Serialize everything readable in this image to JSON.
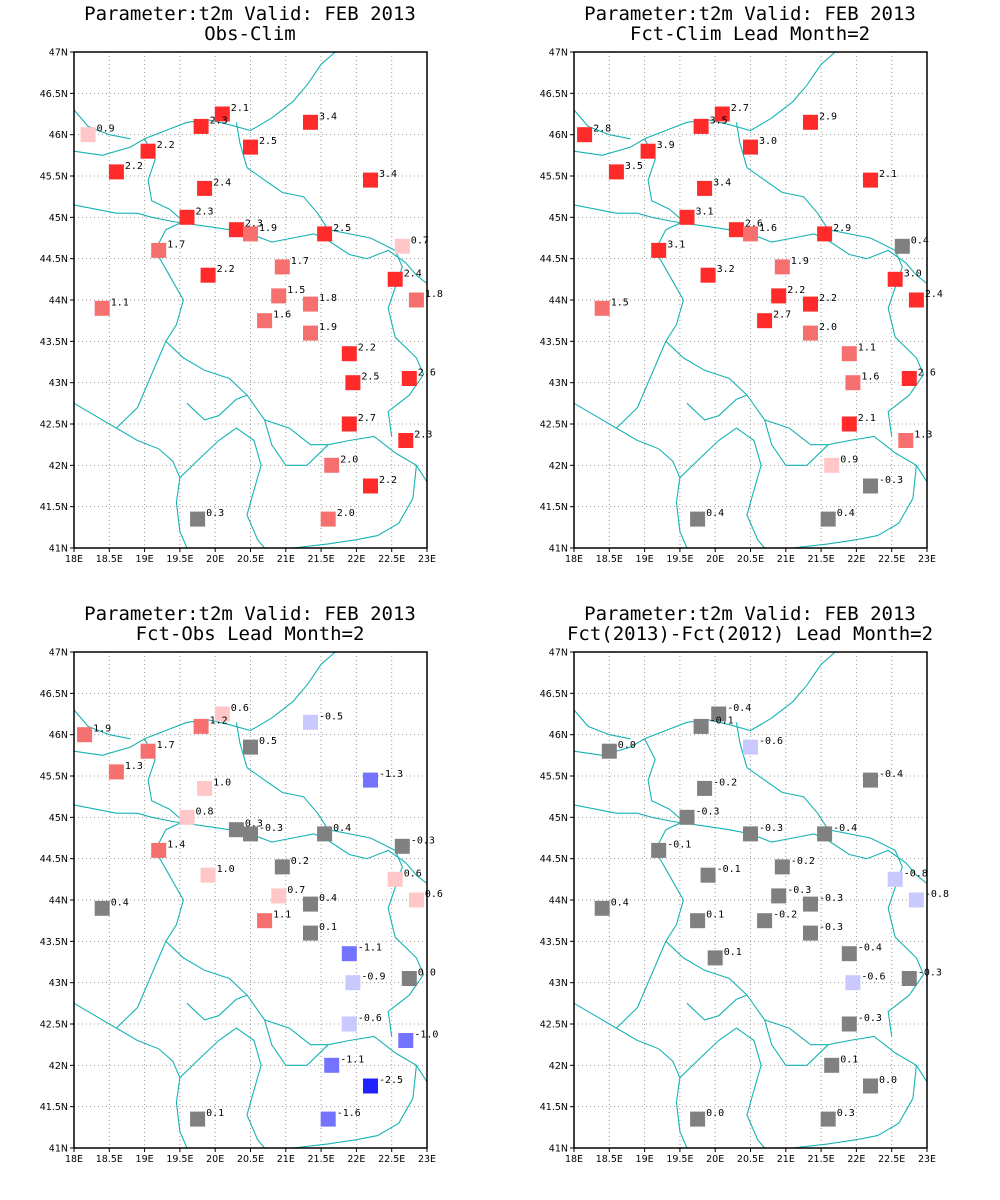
{
  "page": {
    "background": "#ffffff"
  },
  "axes": {
    "lon_range": [
      18,
      23
    ],
    "lat_range": [
      41,
      47
    ],
    "x_tick_labels": [
      "18E",
      "18.5E",
      "19E",
      "19.5E",
      "20E",
      "20.5E",
      "21E",
      "21.5E",
      "22E",
      "22.5E",
      "23E"
    ],
    "y_tick_labels": [
      "41N",
      "41.5N",
      "42N",
      "42.5N",
      "43N",
      "43.5N",
      "44N",
      "44.5N",
      "45N",
      "45.5N",
      "46N",
      "46.5N",
      "47N"
    ],
    "grid": "dotted",
    "coastline_color": "#17b3b3"
  },
  "colors": {
    "strong_warm": "#ff2a2a",
    "medium_warm": "#f77070",
    "light_warm": "#ffc7c7",
    "neutral": "#808080",
    "light_cool": "#c9c9ff",
    "medium_cool": "#7373ff",
    "strong_cool": "#2222ff"
  },
  "panels": [
    {
      "title_line1": "Parameter:t2m Valid: FEB 2013",
      "title_line2": "Obs-Clim",
      "chart_data": {
        "type": "scatter",
        "points": [
          {
            "lon": 18.2,
            "lat": 46.0,
            "label": "0.9",
            "color": "light_warm"
          },
          {
            "lon": 20.1,
            "lat": 46.25,
            "label": "2.1",
            "color": "strong_warm"
          },
          {
            "lon": 19.8,
            "lat": 46.1,
            "label": "2.3",
            "color": "strong_warm"
          },
          {
            "lon": 21.35,
            "lat": 46.15,
            "label": "3.4",
            "color": "strong_warm"
          },
          {
            "lon": 19.05,
            "lat": 45.8,
            "label": "2.2",
            "color": "strong_warm"
          },
          {
            "lon": 20.5,
            "lat": 45.85,
            "label": "2.5",
            "color": "strong_warm"
          },
          {
            "lon": 18.6,
            "lat": 45.55,
            "label": "2.2",
            "color": "strong_warm"
          },
          {
            "lon": 19.85,
            "lat": 45.35,
            "label": "2.4",
            "color": "strong_warm"
          },
          {
            "lon": 22.2,
            "lat": 45.45,
            "label": "3.4",
            "color": "strong_warm"
          },
          {
            "lon": 19.6,
            "lat": 45.0,
            "label": "2.3",
            "color": "strong_warm"
          },
          {
            "lon": 20.3,
            "lat": 44.85,
            "label": "2.3",
            "color": "strong_warm"
          },
          {
            "lon": 20.5,
            "lat": 44.8,
            "label": "1.9",
            "color": "medium_warm"
          },
          {
            "lon": 21.55,
            "lat": 44.8,
            "label": "2.5",
            "color": "strong_warm"
          },
          {
            "lon": 22.65,
            "lat": 44.65,
            "label": "0.7",
            "color": "light_warm"
          },
          {
            "lon": 19.2,
            "lat": 44.6,
            "label": "1.7",
            "color": "medium_warm"
          },
          {
            "lon": 20.95,
            "lat": 44.4,
            "label": "1.7",
            "color": "medium_warm"
          },
          {
            "lon": 19.9,
            "lat": 44.3,
            "label": "2.2",
            "color": "strong_warm"
          },
          {
            "lon": 22.55,
            "lat": 44.25,
            "label": "2.4",
            "color": "strong_warm"
          },
          {
            "lon": 20.9,
            "lat": 44.05,
            "label": "1.5",
            "color": "medium_warm"
          },
          {
            "lon": 21.35,
            "lat": 43.95,
            "label": "1.8",
            "color": "medium_warm"
          },
          {
            "lon": 22.85,
            "lat": 44.0,
            "label": "1.8",
            "color": "medium_warm"
          },
          {
            "lon": 18.4,
            "lat": 43.9,
            "label": "1.1",
            "color": "medium_warm"
          },
          {
            "lon": 20.7,
            "lat": 43.75,
            "label": "1.6",
            "color": "medium_warm"
          },
          {
            "lon": 21.35,
            "lat": 43.6,
            "label": "1.9",
            "color": "medium_warm"
          },
          {
            "lon": 21.9,
            "lat": 43.35,
            "label": "2.2",
            "color": "strong_warm"
          },
          {
            "lon": 21.95,
            "lat": 43.0,
            "label": "2.5",
            "color": "strong_warm"
          },
          {
            "lon": 22.75,
            "lat": 43.05,
            "label": "2.6",
            "color": "strong_warm"
          },
          {
            "lon": 21.9,
            "lat": 42.5,
            "label": "2.7",
            "color": "strong_warm"
          },
          {
            "lon": 22.7,
            "lat": 42.3,
            "label": "2.3",
            "color": "strong_warm"
          },
          {
            "lon": 21.65,
            "lat": 42.0,
            "label": "2.0",
            "color": "medium_warm"
          },
          {
            "lon": 22.2,
            "lat": 41.75,
            "label": "2.2",
            "color": "strong_warm"
          },
          {
            "lon": 19.75,
            "lat": 41.35,
            "label": "0.3",
            "color": "neutral"
          },
          {
            "lon": 21.6,
            "lat": 41.35,
            "label": "2.0",
            "color": "medium_warm"
          }
        ]
      }
    },
    {
      "title_line1": "Parameter:t2m Valid: FEB 2013",
      "title_line2": "Fct-Clim Lead Month=2",
      "chart_data": {
        "type": "scatter",
        "points": [
          {
            "lon": 18.15,
            "lat": 46.0,
            "label": "2.8",
            "color": "strong_warm"
          },
          {
            "lon": 20.1,
            "lat": 46.25,
            "label": "2.7",
            "color": "strong_warm"
          },
          {
            "lon": 19.8,
            "lat": 46.1,
            "label": "3.5",
            "color": "strong_warm"
          },
          {
            "lon": 21.35,
            "lat": 46.15,
            "label": "2.9",
            "color": "strong_warm"
          },
          {
            "lon": 19.05,
            "lat": 45.8,
            "label": "3.9",
            "color": "strong_warm"
          },
          {
            "lon": 20.5,
            "lat": 45.85,
            "label": "3.0",
            "color": "strong_warm"
          },
          {
            "lon": 18.6,
            "lat": 45.55,
            "label": "3.5",
            "color": "strong_warm"
          },
          {
            "lon": 19.85,
            "lat": 45.35,
            "label": "3.4",
            "color": "strong_warm"
          },
          {
            "lon": 22.2,
            "lat": 45.45,
            "label": "2.1",
            "color": "strong_warm"
          },
          {
            "lon": 19.6,
            "lat": 45.0,
            "label": "3.1",
            "color": "strong_warm"
          },
          {
            "lon": 20.3,
            "lat": 44.85,
            "label": "2.6",
            "color": "strong_warm"
          },
          {
            "lon": 20.5,
            "lat": 44.8,
            "label": "1.6",
            "color": "medium_warm"
          },
          {
            "lon": 21.55,
            "lat": 44.8,
            "label": "2.9",
            "color": "strong_warm"
          },
          {
            "lon": 22.65,
            "lat": 44.65,
            "label": "0.4",
            "color": "neutral"
          },
          {
            "lon": 19.2,
            "lat": 44.6,
            "label": "3.1",
            "color": "strong_warm"
          },
          {
            "lon": 20.95,
            "lat": 44.4,
            "label": "1.9",
            "color": "medium_warm"
          },
          {
            "lon": 19.9,
            "lat": 44.3,
            "label": "3.2",
            "color": "strong_warm"
          },
          {
            "lon": 22.55,
            "lat": 44.25,
            "label": "3.0",
            "color": "strong_warm"
          },
          {
            "lon": 20.9,
            "lat": 44.05,
            "label": "2.2",
            "color": "strong_warm"
          },
          {
            "lon": 21.35,
            "lat": 43.95,
            "label": "2.2",
            "color": "strong_warm"
          },
          {
            "lon": 22.85,
            "lat": 44.0,
            "label": "2.4",
            "color": "strong_warm"
          },
          {
            "lon": 18.4,
            "lat": 43.9,
            "label": "1.5",
            "color": "medium_warm"
          },
          {
            "lon": 20.7,
            "lat": 43.75,
            "label": "2.7",
            "color": "strong_warm"
          },
          {
            "lon": 21.35,
            "lat": 43.6,
            "label": "2.0",
            "color": "medium_warm"
          },
          {
            "lon": 21.9,
            "lat": 43.35,
            "label": "1.1",
            "color": "medium_warm"
          },
          {
            "lon": 21.95,
            "lat": 43.0,
            "label": "1.6",
            "color": "medium_warm"
          },
          {
            "lon": 22.75,
            "lat": 43.05,
            "label": "2.6",
            "color": "strong_warm"
          },
          {
            "lon": 21.9,
            "lat": 42.5,
            "label": "2.1",
            "color": "strong_warm"
          },
          {
            "lon": 22.7,
            "lat": 42.3,
            "label": "1.3",
            "color": "medium_warm"
          },
          {
            "lon": 21.65,
            "lat": 42.0,
            "label": "0.9",
            "color": "light_warm"
          },
          {
            "lon": 22.2,
            "lat": 41.75,
            "label": "-0.3",
            "color": "neutral"
          },
          {
            "lon": 19.75,
            "lat": 41.35,
            "label": "0.4",
            "color": "neutral"
          },
          {
            "lon": 21.6,
            "lat": 41.35,
            "label": "0.4",
            "color": "neutral"
          }
        ]
      }
    },
    {
      "title_line1": "Parameter:t2m Valid: FEB 2013",
      "title_line2": "Fct-Obs Lead Month=2",
      "chart_data": {
        "type": "scatter",
        "points": [
          {
            "lon": 18.15,
            "lat": 46.0,
            "label": "1.9",
            "color": "medium_warm"
          },
          {
            "lon": 20.1,
            "lat": 46.25,
            "label": "0.6",
            "color": "light_warm"
          },
          {
            "lon": 19.8,
            "lat": 46.1,
            "label": "1.2",
            "color": "medium_warm"
          },
          {
            "lon": 21.35,
            "lat": 46.15,
            "label": "-0.5",
            "color": "light_cool"
          },
          {
            "lon": 19.05,
            "lat": 45.8,
            "label": "1.7",
            "color": "medium_warm"
          },
          {
            "lon": 20.5,
            "lat": 45.85,
            "label": "0.5",
            "color": "neutral"
          },
          {
            "lon": 18.6,
            "lat": 45.55,
            "label": "1.3",
            "color": "medium_warm"
          },
          {
            "lon": 19.85,
            "lat": 45.35,
            "label": "1.0",
            "color": "light_warm"
          },
          {
            "lon": 22.2,
            "lat": 45.45,
            "label": "-1.3",
            "color": "medium_cool"
          },
          {
            "lon": 19.6,
            "lat": 45.0,
            "label": "0.8",
            "color": "light_warm"
          },
          {
            "lon": 20.3,
            "lat": 44.85,
            "label": "0.3",
            "color": "neutral"
          },
          {
            "lon": 20.5,
            "lat": 44.8,
            "label": "-0.3",
            "color": "neutral"
          },
          {
            "lon": 21.55,
            "lat": 44.8,
            "label": "0.4",
            "color": "neutral"
          },
          {
            "lon": 22.65,
            "lat": 44.65,
            "label": "-0.3",
            "color": "neutral"
          },
          {
            "lon": 19.2,
            "lat": 44.6,
            "label": "1.4",
            "color": "medium_warm"
          },
          {
            "lon": 20.95,
            "lat": 44.4,
            "label": "0.2",
            "color": "neutral"
          },
          {
            "lon": 19.9,
            "lat": 44.3,
            "label": "1.0",
            "color": "light_warm"
          },
          {
            "lon": 22.55,
            "lat": 44.25,
            "label": "0.6",
            "color": "light_warm"
          },
          {
            "lon": 20.9,
            "lat": 44.05,
            "label": "0.7",
            "color": "light_warm"
          },
          {
            "lon": 21.35,
            "lat": 43.95,
            "label": "0.4",
            "color": "neutral"
          },
          {
            "lon": 22.85,
            "lat": 44.0,
            "label": "0.6",
            "color": "light_warm"
          },
          {
            "lon": 18.4,
            "lat": 43.9,
            "label": "0.4",
            "color": "neutral"
          },
          {
            "lon": 20.7,
            "lat": 43.75,
            "label": "1.1",
            "color": "medium_warm"
          },
          {
            "lon": 21.35,
            "lat": 43.6,
            "label": "0.1",
            "color": "neutral"
          },
          {
            "lon": 21.9,
            "lat": 43.35,
            "label": "-1.1",
            "color": "medium_cool"
          },
          {
            "lon": 21.95,
            "lat": 43.0,
            "label": "-0.9",
            "color": "light_cool"
          },
          {
            "lon": 22.75,
            "lat": 43.05,
            "label": "0.0",
            "color": "neutral"
          },
          {
            "lon": 21.9,
            "lat": 42.5,
            "label": "-0.6",
            "color": "light_cool"
          },
          {
            "lon": 22.7,
            "lat": 42.3,
            "label": "-1.0",
            "color": "medium_cool"
          },
          {
            "lon": 21.65,
            "lat": 42.0,
            "label": "-1.1",
            "color": "medium_cool"
          },
          {
            "lon": 22.2,
            "lat": 41.75,
            "label": "-2.5",
            "color": "strong_cool"
          },
          {
            "lon": 19.75,
            "lat": 41.35,
            "label": "0.1",
            "color": "neutral"
          },
          {
            "lon": 21.6,
            "lat": 41.35,
            "label": "-1.6",
            "color": "medium_cool"
          }
        ]
      }
    },
    {
      "title_line1": "Parameter:t2m Valid: FEB 2013",
      "title_line2": "Fct(2013)-Fct(2012) Lead Month=2",
      "chart_data": {
        "type": "scatter",
        "points": [
          {
            "lon": 18.5,
            "lat": 45.8,
            "label": "0.0",
            "color": "neutral"
          },
          {
            "lon": 20.05,
            "lat": 46.25,
            "label": "-0.4",
            "color": "neutral"
          },
          {
            "lon": 19.8,
            "lat": 46.1,
            "label": "-0.1",
            "color": "neutral"
          },
          {
            "lon": 20.5,
            "lat": 45.85,
            "label": "-0.6",
            "color": "light_cool"
          },
          {
            "lon": 19.85,
            "lat": 45.35,
            "label": "-0.2",
            "color": "neutral"
          },
          {
            "lon": 22.2,
            "lat": 45.45,
            "label": "-0.4",
            "color": "neutral"
          },
          {
            "lon": 19.6,
            "lat": 45.0,
            "label": "-0.3",
            "color": "neutral"
          },
          {
            "lon": 20.5,
            "lat": 44.8,
            "label": "-0.3",
            "color": "neutral"
          },
          {
            "lon": 21.55,
            "lat": 44.8,
            "label": "-0.4",
            "color": "neutral"
          },
          {
            "lon": 19.2,
            "lat": 44.6,
            "label": "-0.1",
            "color": "neutral"
          },
          {
            "lon": 20.95,
            "lat": 44.4,
            "label": "-0.2",
            "color": "neutral"
          },
          {
            "lon": 19.9,
            "lat": 44.3,
            "label": "-0.1",
            "color": "neutral"
          },
          {
            "lon": 22.55,
            "lat": 44.25,
            "label": "-0.8",
            "color": "light_cool"
          },
          {
            "lon": 20.9,
            "lat": 44.05,
            "label": "-0.3",
            "color": "neutral"
          },
          {
            "lon": 21.35,
            "lat": 43.95,
            "label": "-0.3",
            "color": "neutral"
          },
          {
            "lon": 22.85,
            "lat": 44.0,
            "label": "-0.8",
            "color": "light_cool"
          },
          {
            "lon": 18.4,
            "lat": 43.9,
            "label": "0.4",
            "color": "neutral"
          },
          {
            "lon": 19.75,
            "lat": 43.75,
            "label": "0.1",
            "color": "neutral"
          },
          {
            "lon": 20.7,
            "lat": 43.75,
            "label": "-0.2",
            "color": "neutral"
          },
          {
            "lon": 21.35,
            "lat": 43.6,
            "label": "-0.3",
            "color": "neutral"
          },
          {
            "lon": 21.9,
            "lat": 43.35,
            "label": "-0.4",
            "color": "neutral"
          },
          {
            "lon": 20.0,
            "lat": 43.3,
            "label": "0.1",
            "color": "neutral"
          },
          {
            "lon": 21.95,
            "lat": 43.0,
            "label": "-0.6",
            "color": "light_cool"
          },
          {
            "lon": 22.75,
            "lat": 43.05,
            "label": "-0.3",
            "color": "neutral"
          },
          {
            "lon": 21.9,
            "lat": 42.5,
            "label": "-0.3",
            "color": "neutral"
          },
          {
            "lon": 21.65,
            "lat": 42.0,
            "label": "0.1",
            "color": "neutral"
          },
          {
            "lon": 22.2,
            "lat": 41.75,
            "label": "0.0",
            "color": "neutral"
          },
          {
            "lon": 19.75,
            "lat": 41.35,
            "label": "0.0",
            "color": "neutral"
          },
          {
            "lon": 21.6,
            "lat": 41.35,
            "label": "0.3",
            "color": "neutral"
          }
        ]
      }
    }
  ]
}
